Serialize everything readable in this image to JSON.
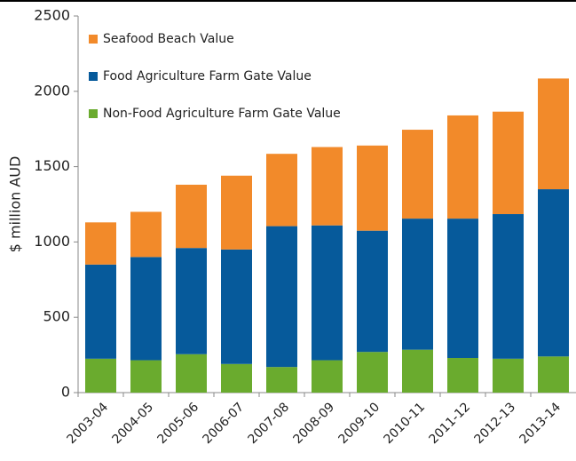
{
  "chart_data": {
    "type": "stacked_bar",
    "y_label": "$ million AUD",
    "categories": [
      "2003-04",
      "2004-05",
      "2005-06",
      "2006-07",
      "2007-08",
      "2008-09",
      "2009-10",
      "2010-11",
      "2011-12",
      "2012-13",
      "2013-14"
    ],
    "series": [
      {
        "name": "Non-Food Agriculture Farm Gate Value",
        "color": "#6aab2e",
        "values": [
          225,
          215,
          255,
          190,
          170,
          215,
          270,
          285,
          230,
          225,
          240
        ]
      },
      {
        "name": "Food Agriculture Farm Gate Value",
        "color": "#065a9b",
        "values": [
          625,
          685,
          705,
          760,
          935,
          895,
          805,
          870,
          925,
          960,
          1110
        ]
      },
      {
        "name": "Seafood Beach Value",
        "color": "#f28a2a",
        "values": [
          280,
          300,
          420,
          490,
          480,
          520,
          565,
          590,
          685,
          680,
          735
        ]
      }
    ],
    "ylim": [
      0,
      2500
    ],
    "yticks": [
      0,
      500,
      1000,
      1500,
      2000,
      2500
    ]
  }
}
